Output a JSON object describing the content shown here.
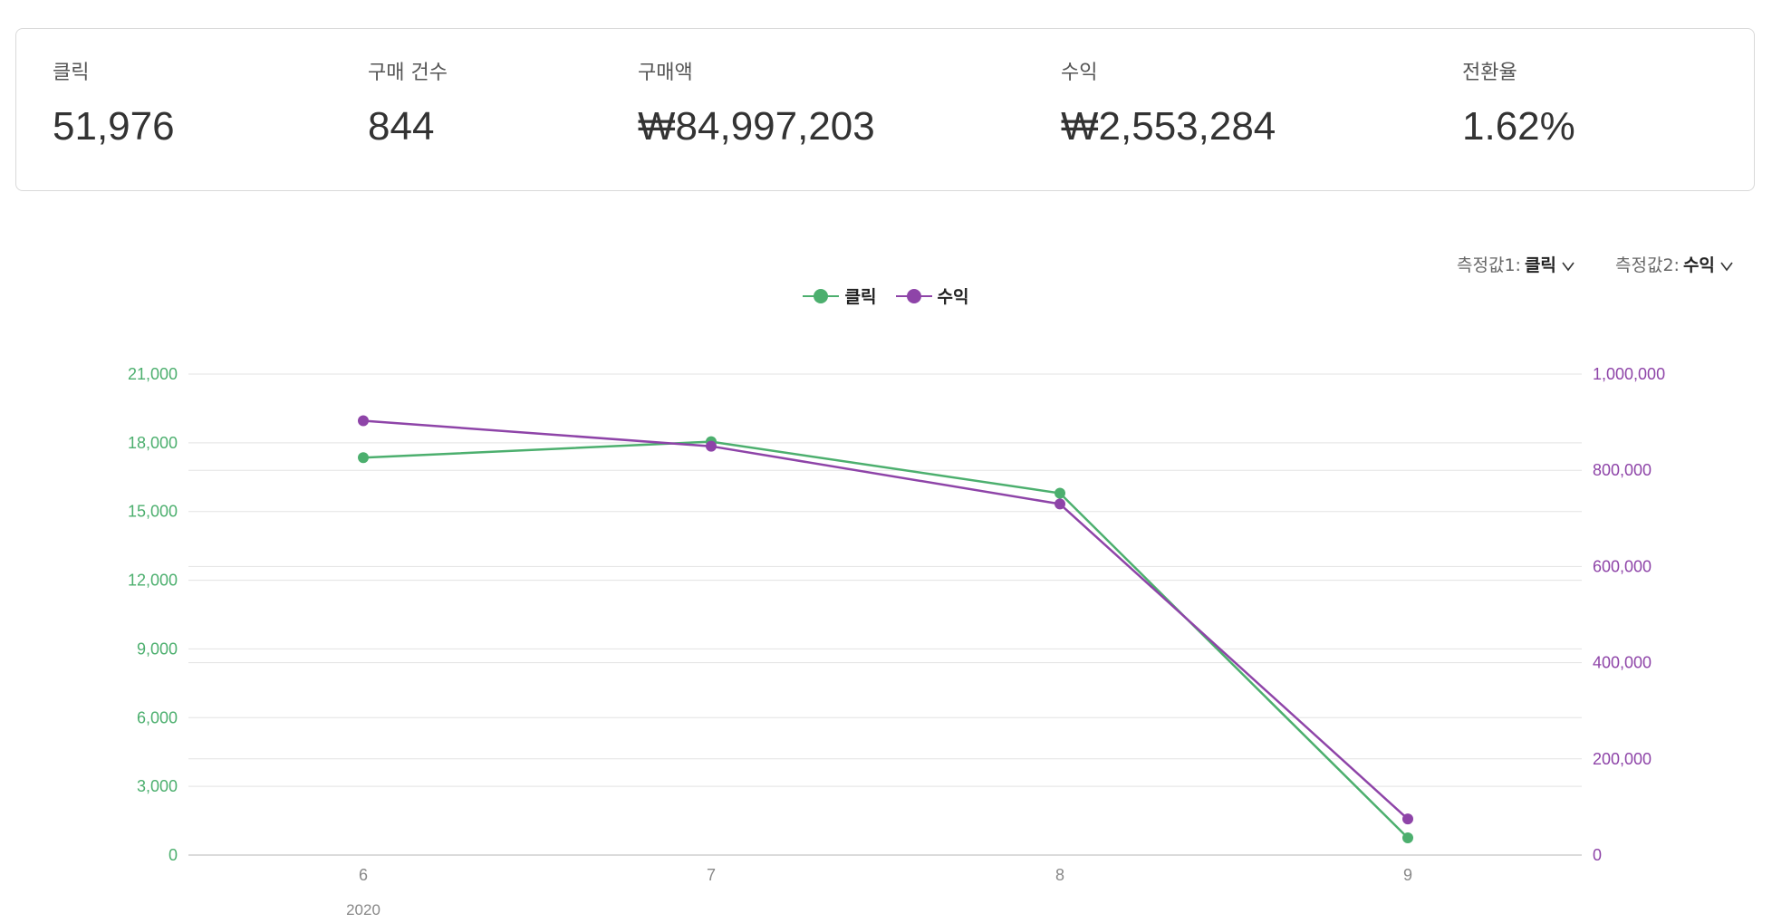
{
  "summary": [
    {
      "label": "클릭",
      "value": "51,976"
    },
    {
      "label": "구매 건수",
      "value": "844"
    },
    {
      "label": "구매액",
      "value": "₩84,997,203"
    },
    {
      "label": "수익",
      "value": "₩2,553,284"
    },
    {
      "label": "전환율",
      "value": "1.62%"
    }
  ],
  "measure_selectors": [
    {
      "label": "측정값1:",
      "value": "클릭"
    },
    {
      "label": "측정값2:",
      "value": "수익"
    }
  ],
  "colors": {
    "click": "#4caf6e",
    "revenue": "#8e44a8",
    "grid": "#e3e3e3",
    "axis_text": "#888888"
  },
  "icons": {
    "dropdown": "chevron-down-icon",
    "legend_marker": "line-dot-legend-icon"
  },
  "chart_data": {
    "type": "line",
    "x": [
      "6",
      "7",
      "8",
      "9"
    ],
    "x_group_label": "2020",
    "legend_position": "top-center",
    "grid": true,
    "series": [
      {
        "name": "클릭",
        "axis": "left",
        "color": "#4caf6e",
        "values": [
          17350,
          18050,
          15800,
          750
        ]
      },
      {
        "name": "수익",
        "axis": "right",
        "color": "#8e44a8",
        "values": [
          903000,
          850000,
          730000,
          75000
        ]
      }
    ],
    "y_left": {
      "min": 0,
      "max": 21000,
      "ticks": [
        0,
        3000,
        6000,
        9000,
        12000,
        15000,
        18000,
        21000
      ],
      "tick_labels": [
        "0",
        "3,000",
        "6,000",
        "9,000",
        "12,000",
        "15,000",
        "18,000",
        "21,000"
      ]
    },
    "y_right": {
      "min": 0,
      "max": 1000000,
      "ticks": [
        0,
        200000,
        400000,
        600000,
        800000,
        1000000
      ],
      "tick_labels": [
        "0",
        "200,000",
        "400,000",
        "600,000",
        "800,000",
        "1,000,000"
      ]
    }
  }
}
